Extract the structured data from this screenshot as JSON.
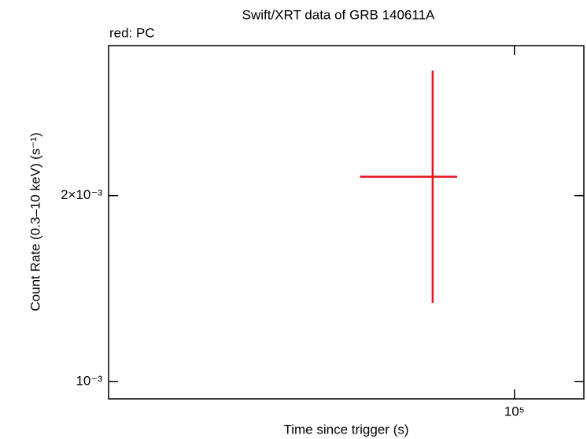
{
  "chart_data": {
    "type": "errorbar",
    "title": "Swift/XRT data of GRB 140611A",
    "subtitle": "red: PC",
    "x_label": "Time since trigger (s)",
    "y_label": "Count Rate (0.3–10 keV) (s⁻¹)",
    "x_scale": "log",
    "y_scale": "log",
    "xlim": [
      14000,
      140000
    ],
    "ylim": [
      0.000937,
      0.0035
    ],
    "xticks": [
      {
        "value": 100000,
        "label": "10⁵"
      }
    ],
    "yticks": [
      {
        "value": 0.001,
        "label": "10⁻³"
      },
      {
        "value": 0.002,
        "label": "2×10⁻³"
      }
    ],
    "series": [
      {
        "color": "#e8141c",
        "x": [
          67300
        ],
        "x_err_minus": [
          20000
        ],
        "x_err_plus": [
          8500
        ],
        "values": [
          0.002146
        ],
        "y_err_minus": [
          0.000805
        ],
        "y_err_plus": [
          0.001044
        ]
      }
    ]
  }
}
